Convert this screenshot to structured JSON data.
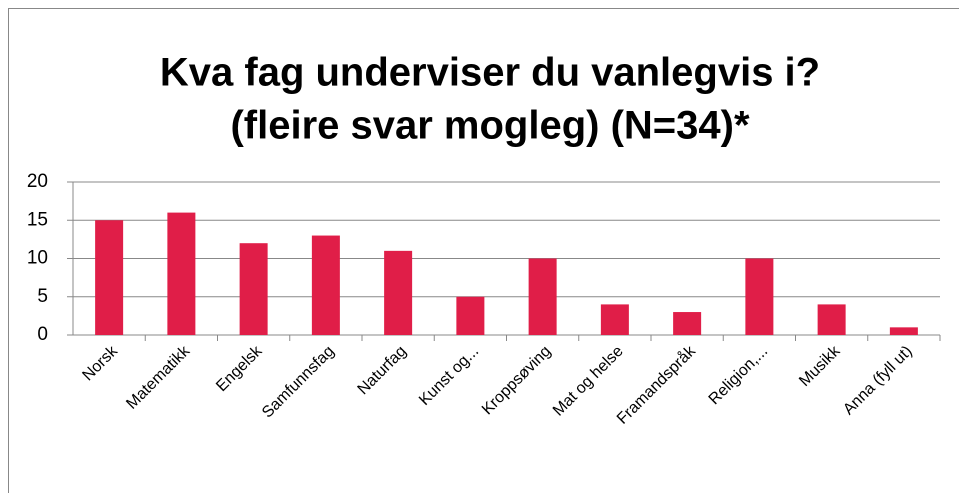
{
  "chart_data": {
    "type": "bar",
    "title": [
      "Kva fag underviser du vanlegvis i?",
      "(fleire svar mogleg) (N=34)*"
    ],
    "categories": [
      "Norsk",
      "Matematikk",
      "Engelsk",
      "Samfunnsfag",
      "Naturfag",
      "Kunst og...",
      "Kroppsøving",
      "Mat og helse",
      "Framandspråk",
      "Religion,...",
      "Musikk",
      "Anna (fyll ut)"
    ],
    "values": [
      15,
      16,
      12,
      13,
      11,
      5,
      10,
      4,
      3,
      10,
      4,
      1
    ],
    "color": "#e01e48",
    "ylim": [
      0,
      20
    ],
    "yticks": [
      0,
      5,
      10,
      15,
      20
    ],
    "grid": true
  }
}
